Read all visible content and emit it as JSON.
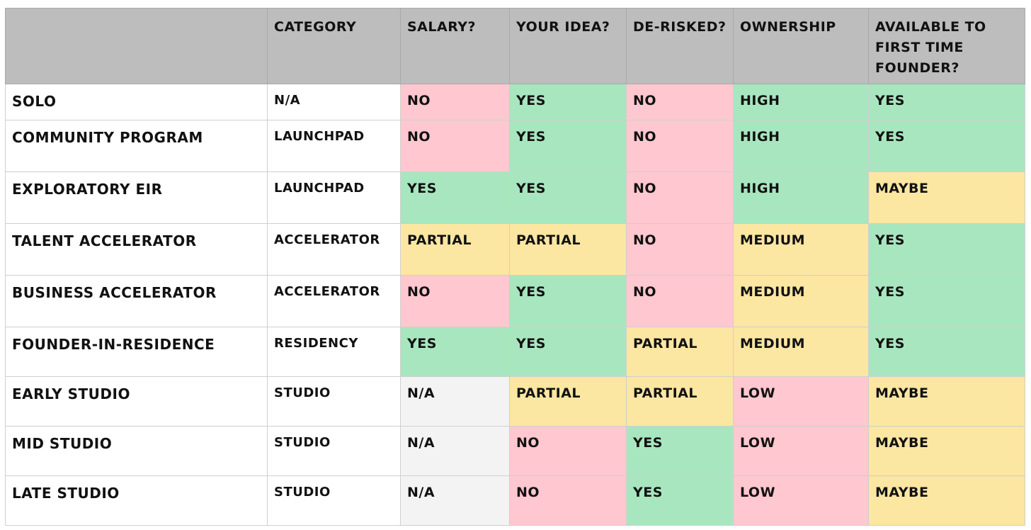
{
  "table": {
    "headers": [
      "",
      "Category",
      "Salary?",
      "Your idea?",
      "De-risked?",
      "Ownership",
      "Available to first time founder?"
    ],
    "rows": [
      {
        "name": "Solo",
        "category": "N/A",
        "salary": "No",
        "your_idea": "Yes",
        "de_risked": "No",
        "ownership": "High",
        "first_time": "Yes"
      },
      {
        "name": "Community Program",
        "category": "Launchpad",
        "salary": "No",
        "your_idea": "Yes",
        "de_risked": "No",
        "ownership": "High",
        "first_time": "Yes"
      },
      {
        "name": "Exploratory EIR",
        "category": "Launchpad",
        "salary": "Yes",
        "your_idea": "Yes",
        "de_risked": "No",
        "ownership": "High",
        "first_time": "Maybe"
      },
      {
        "name": "Talent Accelerator",
        "category": "Accelerator",
        "salary": "Partial",
        "your_idea": "Partial",
        "de_risked": "No",
        "ownership": "Medium",
        "first_time": "Yes"
      },
      {
        "name": "Business Accelerator",
        "category": "Accelerator",
        "salary": "No",
        "your_idea": "Yes",
        "de_risked": "No",
        "ownership": "Medium",
        "first_time": "Yes"
      },
      {
        "name": "Founder-in-Residence",
        "category": "Residency",
        "salary": "Yes",
        "your_idea": "Yes",
        "de_risked": "Partial",
        "ownership": "Medium",
        "first_time": "Yes"
      },
      {
        "name": "Early Studio",
        "category": "Studio",
        "salary": "N/A",
        "your_idea": "Partial",
        "de_risked": "Partial",
        "ownership": "Low",
        "first_time": "Maybe"
      },
      {
        "name": "Mid Studio",
        "category": "Studio",
        "salary": "N/A",
        "your_idea": "No",
        "de_risked": "Yes",
        "ownership": "Low",
        "first_time": "Maybe"
      },
      {
        "name": "Late Studio",
        "category": "Studio",
        "salary": "N/A",
        "your_idea": "No",
        "de_risked": "Yes",
        "ownership": "Low",
        "first_time": "Maybe"
      }
    ]
  },
  "colors": {
    "header_bg": "#bdbdbd",
    "yes_green": "#a8e6bf",
    "no_pink": "#ffc7cf",
    "partial_yellow": "#fbe6a2",
    "na_grey": "#f3f3f3"
  }
}
